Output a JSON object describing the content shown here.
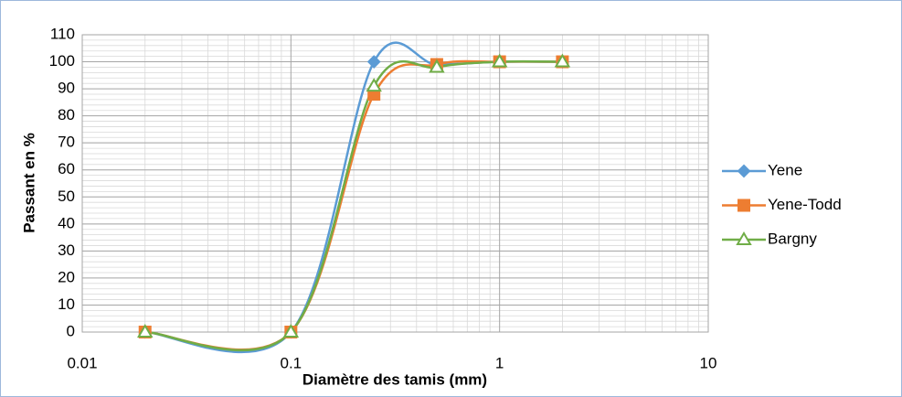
{
  "chart_data": {
    "type": "scatter",
    "xlabel": "Diamètre des tamis (mm)",
    "ylabel": "Passant en %",
    "x": [
      0.02,
      0.1,
      0.25,
      0.5,
      1,
      2
    ],
    "series": [
      {
        "name": "Yene",
        "color": "#5b9bd5",
        "marker": "diamond",
        "values": [
          0,
          0,
          100,
          99,
          100,
          100
        ]
      },
      {
        "name": "Yene-Todd",
        "color": "#ed7d31",
        "marker": "square",
        "values": [
          0,
          0,
          88,
          99,
          100,
          100
        ]
      },
      {
        "name": "Bargny",
        "color": "#70ad47",
        "marker": "triangle",
        "values": [
          0,
          0,
          91,
          98,
          100,
          100
        ]
      }
    ],
    "xlim": [
      0.01,
      10
    ],
    "xticks": [
      0.01,
      0.1,
      1,
      10
    ],
    "ylim": [
      0,
      110
    ],
    "yticks": [
      0,
      10,
      20,
      30,
      40,
      50,
      60,
      70,
      80,
      90,
      100,
      110
    ],
    "xscale": "log",
    "grid": true,
    "smooth": true,
    "legend": "right"
  }
}
